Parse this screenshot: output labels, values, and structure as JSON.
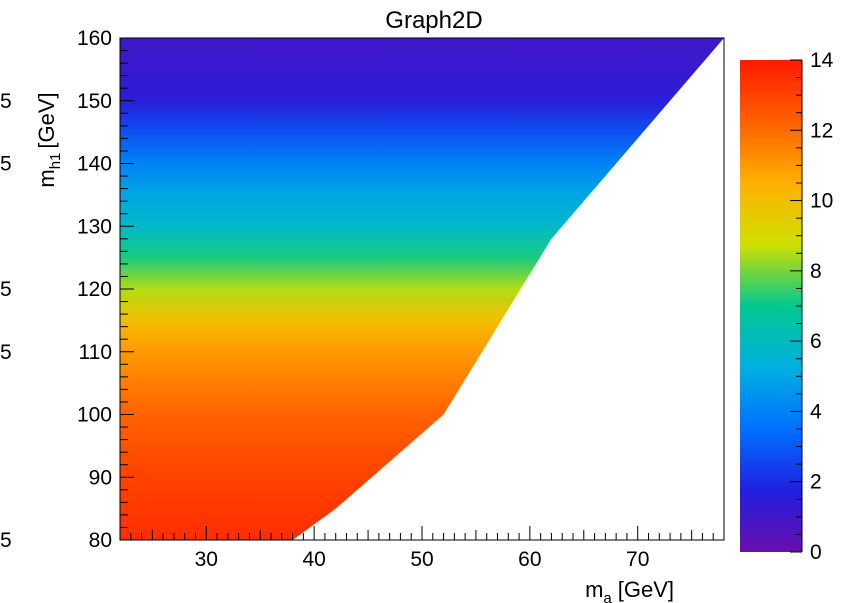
{
  "chart_data": {
    "type": "heatmap",
    "title": "Graph2D",
    "xlabel": {
      "main": "m",
      "sub": "a",
      "unit": "[GeV]"
    },
    "ylabel": {
      "main": "m",
      "sub": "h1",
      "unit": "[GeV]"
    },
    "xlim": [
      22,
      78
    ],
    "ylim": [
      80,
      160
    ],
    "x_ticks": [
      "30",
      "40",
      "50",
      "60",
      "70"
    ],
    "x_tick_values": [
      30,
      40,
      50,
      60,
      70
    ],
    "y_ticks": [
      "80",
      "90",
      "100",
      "110",
      "120",
      "130",
      "140",
      "150",
      "160"
    ],
    "y_tick_values": [
      80,
      90,
      100,
      110,
      120,
      130,
      140,
      150,
      160
    ],
    "z_range": [
      0,
      14
    ],
    "z_ticks": [
      "0",
      "2",
      "4",
      "6",
      "8",
      "10",
      "12",
      "14"
    ],
    "z_tick_values": [
      0,
      2,
      4,
      6,
      8,
      10,
      12,
      14
    ],
    "colormap": [
      "#6a0dad",
      "#2020e0",
      "#0070ff",
      "#00b0e0",
      "#00c890",
      "#d0e000",
      "#ffb000",
      "#ff6000",
      "#ff1a00"
    ],
    "valid_region_boundary": [
      [
        38,
        80
      ],
      [
        42,
        85
      ],
      [
        52,
        100
      ],
      [
        62,
        128
      ],
      [
        72,
        148
      ],
      [
        78,
        160
      ]
    ],
    "values_by_mh1": {
      "mh1": [
        80,
        90,
        100,
        110,
        115,
        120,
        125,
        130,
        135,
        140,
        145,
        150,
        155,
        160
      ],
      "z": [
        13.5,
        13.0,
        12.2,
        11.0,
        10.0,
        8.5,
        7.2,
        5.8,
        5.0,
        4.0,
        2.8,
        1.5,
        1.2,
        1.0
      ]
    },
    "left_clip_labels": [
      "5",
      "5",
      "5",
      "5",
      "5"
    ],
    "left_clip_label_y": [
      150,
      140,
      120,
      110,
      80
    ]
  }
}
